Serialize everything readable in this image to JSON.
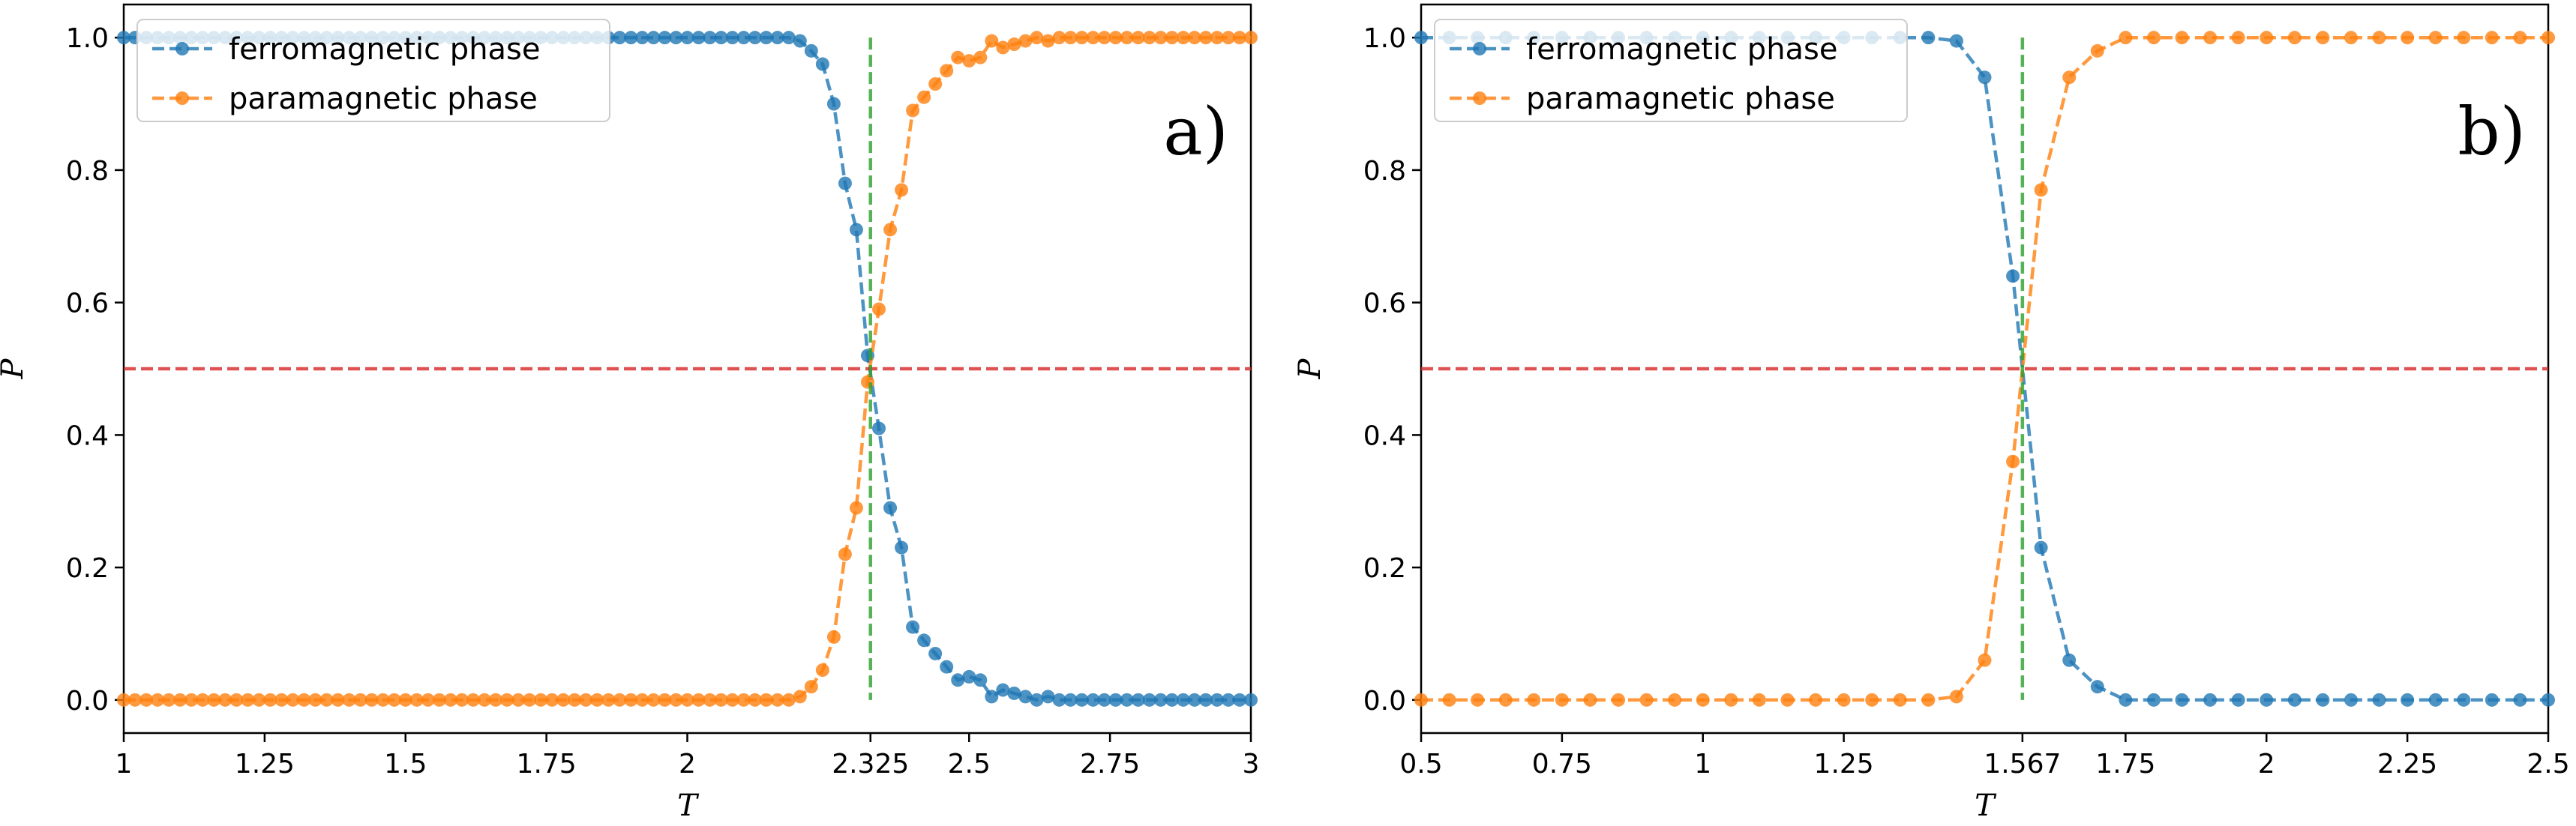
{
  "colors": {
    "ferro": "#1f77b4",
    "para": "#ff7f0e",
    "hline": "#d62728",
    "vline": "#2ca02c"
  },
  "chart_data": [
    {
      "type": "line",
      "panel_label": "a)",
      "xlabel": "T",
      "ylabel": "P",
      "xlim": [
        1,
        3
      ],
      "ylim": [
        -0.05,
        1.05
      ],
      "xticks": [
        1,
        1.25,
        1.5,
        1.75,
        2,
        2.325,
        2.5,
        2.75,
        3
      ],
      "xtick_labels": [
        "1",
        "1.25",
        "1.5",
        "1.75",
        "2",
        "2.325",
        "2.5",
        "2.75",
        "3"
      ],
      "yticks": [
        0,
        0.2,
        0.4,
        0.6,
        0.8,
        1.0
      ],
      "ytick_labels": [
        "0.0",
        "0.2",
        "0.4",
        "0.6",
        "0.8",
        "1.0"
      ],
      "hline": 0.5,
      "vline": 2.325,
      "legend": "top-left",
      "grid": false,
      "x": [
        1.0,
        1.02,
        1.04,
        1.06,
        1.08,
        1.1,
        1.12,
        1.14,
        1.16,
        1.18,
        1.2,
        1.22,
        1.24,
        1.26,
        1.28,
        1.3,
        1.32,
        1.34,
        1.36,
        1.38,
        1.4,
        1.42,
        1.44,
        1.46,
        1.48,
        1.5,
        1.52,
        1.54,
        1.56,
        1.58,
        1.6,
        1.62,
        1.64,
        1.66,
        1.68,
        1.7,
        1.72,
        1.74,
        1.76,
        1.78,
        1.8,
        1.82,
        1.84,
        1.86,
        1.88,
        1.9,
        1.92,
        1.94,
        1.96,
        1.98,
        2.0,
        2.02,
        2.04,
        2.06,
        2.08,
        2.1,
        2.12,
        2.14,
        2.16,
        2.18,
        2.2,
        2.22,
        2.24,
        2.26,
        2.28,
        2.3,
        2.32,
        2.34,
        2.36,
        2.38,
        2.4,
        2.42,
        2.44,
        2.46,
        2.48,
        2.5,
        2.52,
        2.54,
        2.56,
        2.58,
        2.6,
        2.62,
        2.64,
        2.66,
        2.68,
        2.7,
        2.72,
        2.74,
        2.76,
        2.78,
        2.8,
        2.82,
        2.84,
        2.86,
        2.88,
        2.9,
        2.92,
        2.94,
        2.96,
        2.98,
        3.0
      ],
      "series": [
        {
          "name": "ferromagnetic phase",
          "values": [
            1.0,
            1.0,
            1.0,
            1.0,
            1.0,
            1.0,
            1.0,
            1.0,
            1.0,
            1.0,
            1.0,
            1.0,
            1.0,
            1.0,
            1.0,
            1.0,
            1.0,
            1.0,
            1.0,
            1.0,
            1.0,
            1.0,
            1.0,
            1.0,
            1.0,
            1.0,
            1.0,
            1.0,
            1.0,
            1.0,
            1.0,
            1.0,
            1.0,
            1.0,
            1.0,
            1.0,
            1.0,
            1.0,
            1.0,
            1.0,
            1.0,
            1.0,
            1.0,
            1.0,
            1.0,
            1.0,
            1.0,
            1.0,
            1.0,
            1.0,
            1.0,
            1.0,
            1.0,
            1.0,
            1.0,
            1.0,
            1.0,
            1.0,
            1.0,
            1.0,
            0.995,
            0.98,
            0.96,
            0.9,
            0.78,
            0.71,
            0.52,
            0.41,
            0.29,
            0.23,
            0.11,
            0.09,
            0.07,
            0.05,
            0.03,
            0.035,
            0.03,
            0.005,
            0.015,
            0.01,
            0.005,
            0.0,
            0.005,
            0.0,
            0.0,
            0.0,
            0.0,
            0.0,
            0.0,
            0.0,
            0.0,
            0.0,
            0.0,
            0.0,
            0.0,
            0.0,
            0.0,
            0.0,
            0.0,
            0.0,
            0.0
          ]
        },
        {
          "name": "paramagnetic phase",
          "values": [
            0.0,
            0.0,
            0.0,
            0.0,
            0.0,
            0.0,
            0.0,
            0.0,
            0.0,
            0.0,
            0.0,
            0.0,
            0.0,
            0.0,
            0.0,
            0.0,
            0.0,
            0.0,
            0.0,
            0.0,
            0.0,
            0.0,
            0.0,
            0.0,
            0.0,
            0.0,
            0.0,
            0.0,
            0.0,
            0.0,
            0.0,
            0.0,
            0.0,
            0.0,
            0.0,
            0.0,
            0.0,
            0.0,
            0.0,
            0.0,
            0.0,
            0.0,
            0.0,
            0.0,
            0.0,
            0.0,
            0.0,
            0.0,
            0.0,
            0.0,
            0.0,
            0.0,
            0.0,
            0.0,
            0.0,
            0.0,
            0.0,
            0.0,
            0.0,
            0.0,
            0.005,
            0.02,
            0.045,
            0.095,
            0.22,
            0.29,
            0.48,
            0.59,
            0.71,
            0.77,
            0.89,
            0.91,
            0.93,
            0.95,
            0.97,
            0.965,
            0.97,
            0.995,
            0.985,
            0.99,
            0.995,
            1.0,
            0.995,
            1.0,
            1.0,
            1.0,
            1.0,
            1.0,
            1.0,
            1.0,
            1.0,
            1.0,
            1.0,
            1.0,
            1.0,
            1.0,
            1.0,
            1.0,
            1.0,
            1.0,
            1.0
          ]
        }
      ]
    },
    {
      "type": "line",
      "panel_label": "b)",
      "xlabel": "T",
      "ylabel": "P",
      "xlim": [
        0.5,
        2.5
      ],
      "ylim": [
        -0.05,
        1.05
      ],
      "xticks": [
        0.5,
        0.75,
        1,
        1.25,
        1.567,
        1.75,
        2,
        2.25,
        2.5
      ],
      "xtick_labels": [
        "0.5",
        "0.75",
        "1",
        "1.25",
        "1.567",
        "1.75",
        "2",
        "2.25",
        "2.5"
      ],
      "yticks": [
        0,
        0.2,
        0.4,
        0.6,
        0.8,
        1.0
      ],
      "ytick_labels": [
        "0.0",
        "0.2",
        "0.4",
        "0.6",
        "0.8",
        "1.0"
      ],
      "hline": 0.5,
      "vline": 1.567,
      "legend": "top-left",
      "grid": false,
      "x": [
        0.5,
        0.55,
        0.6,
        0.65,
        0.7,
        0.75,
        0.8,
        0.85,
        0.9,
        0.95,
        1.0,
        1.05,
        1.1,
        1.15,
        1.2,
        1.25,
        1.3,
        1.35,
        1.4,
        1.45,
        1.5,
        1.55,
        1.6,
        1.65,
        1.7,
        1.75,
        1.8,
        1.85,
        1.9,
        1.95,
        2.0,
        2.05,
        2.1,
        2.15,
        2.2,
        2.25,
        2.3,
        2.35,
        2.4,
        2.45,
        2.5
      ],
      "series": [
        {
          "name": "ferromagnetic phase",
          "values": [
            1.0,
            1.0,
            1.0,
            1.0,
            1.0,
            1.0,
            1.0,
            1.0,
            1.0,
            1.0,
            1.0,
            1.0,
            1.0,
            1.0,
            1.0,
            1.0,
            1.0,
            1.0,
            1.0,
            0.995,
            0.94,
            0.64,
            0.23,
            0.06,
            0.02,
            0.0,
            0.0,
            0.0,
            0.0,
            0.0,
            0.0,
            0.0,
            0.0,
            0.0,
            0.0,
            0.0,
            0.0,
            0.0,
            0.0,
            0.0,
            0.0
          ]
        },
        {
          "name": "paramagnetic phase",
          "values": [
            0.0,
            0.0,
            0.0,
            0.0,
            0.0,
            0.0,
            0.0,
            0.0,
            0.0,
            0.0,
            0.0,
            0.0,
            0.0,
            0.0,
            0.0,
            0.0,
            0.0,
            0.0,
            0.0,
            0.005,
            0.06,
            0.36,
            0.77,
            0.94,
            0.98,
            1.0,
            1.0,
            1.0,
            1.0,
            1.0,
            1.0,
            1.0,
            1.0,
            1.0,
            1.0,
            1.0,
            1.0,
            1.0,
            1.0,
            1.0,
            1.0
          ]
        }
      ]
    }
  ]
}
